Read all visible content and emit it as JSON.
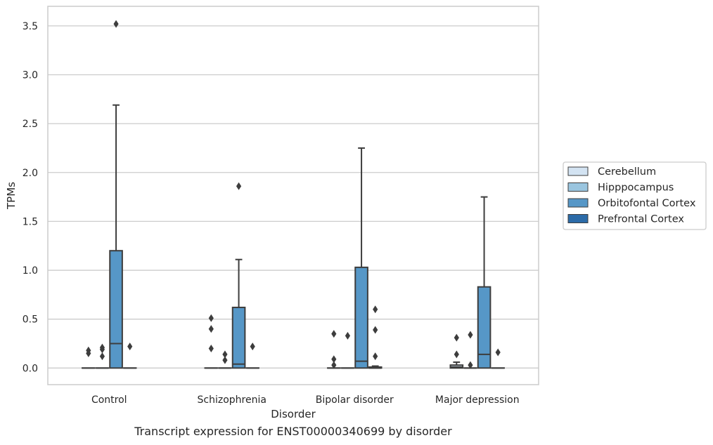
{
  "caption": "Transcript expression for ENST00000340699 by disorder",
  "chart_data": {
    "type": "box",
    "xlabel": "Disorder",
    "ylabel": "TPMs",
    "ylim": [
      -0.17,
      3.7
    ],
    "yticks": [
      0.0,
      0.5,
      1.0,
      1.5,
      2.0,
      2.5,
      3.0,
      3.5
    ],
    "ytick_labels": [
      "0.0",
      "0.5",
      "1.0",
      "1.5",
      "2.0",
      "2.5",
      "3.0",
      "3.5"
    ],
    "grid": "horizontal",
    "legend_position": "right",
    "categories": [
      "Control",
      "Schizophrenia",
      "Bipolar disorder",
      "Major depression"
    ],
    "series": [
      {
        "name": "Cerebellum",
        "color": "#d3e3f2",
        "boxes": [
          {
            "q1": 0.0,
            "median": 0.0,
            "q3": 0.0,
            "whisker_low": 0.0,
            "whisker_high": 0.0,
            "outliers": [
              0.15,
              0.18
            ]
          },
          {
            "q1": 0.0,
            "median": 0.0,
            "q3": 0.0,
            "whisker_low": 0.0,
            "whisker_high": 0.0,
            "outliers": [
              0.2,
              0.4,
              0.51
            ]
          },
          {
            "q1": 0.0,
            "median": 0.0,
            "q3": 0.0,
            "whisker_low": 0.0,
            "whisker_high": 0.0,
            "outliers": [
              0.03,
              0.09,
              0.35
            ]
          },
          {
            "q1": 0.0,
            "median": 0.01,
            "q3": 0.03,
            "whisker_low": 0.0,
            "whisker_high": 0.06,
            "outliers": [
              0.14,
              0.31
            ]
          }
        ]
      },
      {
        "name": "Hipppocampus",
        "color": "#9ac5df",
        "boxes": [
          {
            "q1": 0.0,
            "median": 0.0,
            "q3": 0.0,
            "whisker_low": 0.0,
            "whisker_high": 0.0,
            "outliers": [
              0.12,
              0.19,
              0.21
            ]
          },
          {
            "q1": 0.0,
            "median": 0.0,
            "q3": 0.0,
            "whisker_low": 0.0,
            "whisker_high": 0.0,
            "outliers": [
              0.08,
              0.14
            ]
          },
          {
            "q1": 0.0,
            "median": 0.0,
            "q3": 0.0,
            "whisker_low": 0.0,
            "whisker_high": 0.0,
            "outliers": [
              0.33
            ]
          },
          {
            "q1": 0.0,
            "median": 0.0,
            "q3": 0.0,
            "whisker_low": 0.0,
            "whisker_high": 0.0,
            "outliers": [
              0.03,
              0.34
            ]
          }
        ]
      },
      {
        "name": "Orbitofontal Cortex",
        "color": "#5697c7",
        "boxes": [
          {
            "q1": 0.0,
            "median": 0.25,
            "q3": 1.2,
            "whisker_low": 0.0,
            "whisker_high": 2.69,
            "outliers": [
              3.52
            ]
          },
          {
            "q1": 0.0,
            "median": 0.04,
            "q3": 0.62,
            "whisker_low": 0.0,
            "whisker_high": 1.11,
            "outliers": [
              1.86
            ]
          },
          {
            "q1": 0.0,
            "median": 0.07,
            "q3": 1.03,
            "whisker_low": 0.0,
            "whisker_high": 2.25,
            "outliers": []
          },
          {
            "q1": 0.0,
            "median": 0.14,
            "q3": 0.83,
            "whisker_low": 0.0,
            "whisker_high": 1.75,
            "outliers": []
          }
        ]
      },
      {
        "name": "Prefrontal Cortex",
        "color": "#2c6ba8",
        "boxes": [
          {
            "q1": 0.0,
            "median": 0.0,
            "q3": 0.0,
            "whisker_low": 0.0,
            "whisker_high": 0.0,
            "outliers": [
              0.22
            ]
          },
          {
            "q1": 0.0,
            "median": 0.0,
            "q3": 0.0,
            "whisker_low": 0.0,
            "whisker_high": 0.0,
            "outliers": [
              0.22
            ]
          },
          {
            "q1": 0.0,
            "median": 0.0,
            "q3": 0.01,
            "whisker_low": 0.0,
            "whisker_high": 0.02,
            "outliers": [
              0.12,
              0.39,
              0.6
            ]
          },
          {
            "q1": 0.0,
            "median": 0.0,
            "q3": 0.0,
            "whisker_low": 0.0,
            "whisker_high": 0.0,
            "outliers": [
              0.16
            ]
          }
        ]
      }
    ]
  }
}
